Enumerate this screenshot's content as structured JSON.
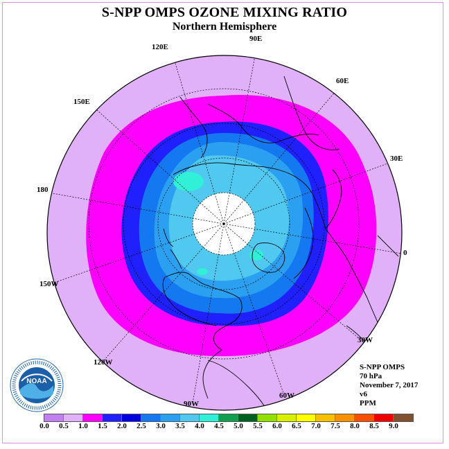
{
  "title": "S-NPP OMPS OZONE MIXING RATIO",
  "subtitle": "Northern Hemisphere",
  "longitude_labels": [
    "90E",
    "60E",
    "30E",
    "0",
    "30W",
    "60W",
    "90W",
    "120W",
    "150W",
    "180",
    "150E",
    "120E"
  ],
  "info": {
    "instrument": "S-NPP OMPS",
    "level": "70 hPa",
    "date": "November 7, 2017",
    "version": "v6",
    "units": "PPM"
  },
  "colorbar": {
    "ticks": [
      "0.0",
      "0.5",
      "1.0",
      "1.5",
      "2.0",
      "2.5",
      "3.0",
      "3.5",
      "4.0",
      "4.5",
      "5.0",
      "5.5",
      "6.0",
      "6.5",
      "7.0",
      "7.5",
      "8.0",
      "8.5",
      "9.0"
    ],
    "colors": [
      "#c080f0",
      "#e0b0f8",
      "#ff00ff",
      "#2020ff",
      "#0000e0",
      "#1478f0",
      "#2ca0f0",
      "#50c8f0",
      "#30f0d8",
      "#10a050",
      "#006020",
      "#90e000",
      "#d8f000",
      "#ffff00",
      "#f8c000",
      "#f89000",
      "#f85000",
      "#f00000",
      "#805030"
    ]
  },
  "logo_text": "NOAA"
}
